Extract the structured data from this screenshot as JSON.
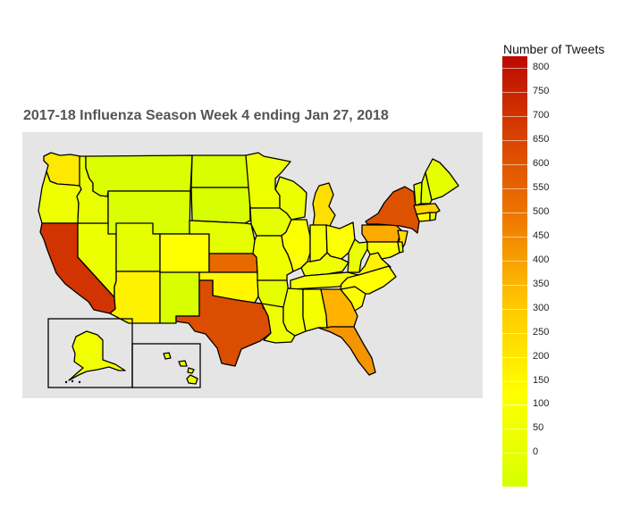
{
  "title": "2017-18 Influenza Season Week 4 ending Jan 27, 2018",
  "legend": {
    "title": "Number of Tweets",
    "ticks": [
      "0",
      "50",
      "100",
      "150",
      "200",
      "250",
      "300",
      "350",
      "400",
      "450",
      "500",
      "550",
      "600",
      "650",
      "700",
      "750",
      "800"
    ],
    "low_color": "#d7ff00",
    "high_color": "#bb0a00"
  },
  "map": {
    "background": "#e5e5e5",
    "states": [
      {
        "name": "WA",
        "value": 190,
        "color": "#ffe900"
      },
      {
        "name": "OR",
        "value": 90,
        "color": "#f0ff00"
      },
      {
        "name": "CA",
        "value": 740,
        "color": "#d13400"
      },
      {
        "name": "NV",
        "value": 80,
        "color": "#eeff00"
      },
      {
        "name": "ID",
        "value": 70,
        "color": "#e9ff00"
      },
      {
        "name": "MT",
        "value": 30,
        "color": "#dbff00"
      },
      {
        "name": "WY",
        "value": 25,
        "color": "#d9ff00"
      },
      {
        "name": "UT",
        "value": 60,
        "color": "#e5ff00"
      },
      {
        "name": "AZ",
        "value": 170,
        "color": "#fff200"
      },
      {
        "name": "CO",
        "value": 150,
        "color": "#ffff00"
      },
      {
        "name": "NM",
        "value": 20,
        "color": "#d8ff00"
      },
      {
        "name": "ND",
        "value": 20,
        "color": "#d8ff00"
      },
      {
        "name": "SD",
        "value": 20,
        "color": "#d8ff00"
      },
      {
        "name": "NE",
        "value": 60,
        "color": "#e5ff00"
      },
      {
        "name": "KS",
        "value": 570,
        "color": "#e86900"
      },
      {
        "name": "OK",
        "value": 160,
        "color": "#fff600"
      },
      {
        "name": "TX",
        "value": 670,
        "color": "#db4d00"
      },
      {
        "name": "MN",
        "value": 80,
        "color": "#eeff00"
      },
      {
        "name": "IA",
        "value": 60,
        "color": "#e5ff00"
      },
      {
        "name": "MO",
        "value": 90,
        "color": "#f0ff00"
      },
      {
        "name": "AR",
        "value": 60,
        "color": "#e5ff00"
      },
      {
        "name": "LA",
        "value": 90,
        "color": "#f0ff00"
      },
      {
        "name": "WI",
        "value": 80,
        "color": "#eeff00"
      },
      {
        "name": "IL",
        "value": 130,
        "color": "#fbff00"
      },
      {
        "name": "MI",
        "value": 210,
        "color": "#ffdf00"
      },
      {
        "name": "IN",
        "value": 110,
        "color": "#f5ff00"
      },
      {
        "name": "OH",
        "value": 140,
        "color": "#fdff00"
      },
      {
        "name": "KY",
        "value": 90,
        "color": "#f0ff00"
      },
      {
        "name": "TN",
        "value": 110,
        "color": "#f5ff00"
      },
      {
        "name": "MS",
        "value": 80,
        "color": "#eeff00"
      },
      {
        "name": "AL",
        "value": 110,
        "color": "#f5ff00"
      },
      {
        "name": "GA",
        "value": 350,
        "color": "#ffb300"
      },
      {
        "name": "FL",
        "value": 470,
        "color": "#f49400"
      },
      {
        "name": "SC",
        "value": 140,
        "color": "#fdff00"
      },
      {
        "name": "NC",
        "value": 150,
        "color": "#ffff00"
      },
      {
        "name": "VA",
        "value": 170,
        "color": "#fff200"
      },
      {
        "name": "WV",
        "value": 70,
        "color": "#e9ff00"
      },
      {
        "name": "PA",
        "value": 400,
        "color": "#ffaa00"
      },
      {
        "name": "NY",
        "value": 650,
        "color": "#dd5200"
      },
      {
        "name": "NJ",
        "value": 210,
        "color": "#ffdf00"
      },
      {
        "name": "MD",
        "value": 150,
        "color": "#ffff00"
      },
      {
        "name": "DE",
        "value": 60,
        "color": "#e5ff00"
      },
      {
        "name": "CT",
        "value": 150,
        "color": "#ffff00"
      },
      {
        "name": "RI",
        "value": 70,
        "color": "#e9ff00"
      },
      {
        "name": "MA",
        "value": 250,
        "color": "#ffd200"
      },
      {
        "name": "VT",
        "value": 40,
        "color": "#dfff00"
      },
      {
        "name": "NH",
        "value": 60,
        "color": "#e5ff00"
      },
      {
        "name": "ME",
        "value": 60,
        "color": "#e5ff00"
      },
      {
        "name": "AK",
        "value": 100,
        "color": "#f2ff00"
      },
      {
        "name": "HI",
        "value": 70,
        "color": "#e9ff00"
      }
    ]
  }
}
